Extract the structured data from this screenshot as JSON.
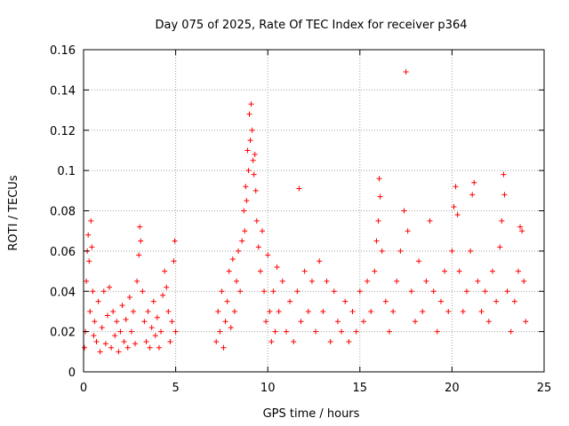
{
  "chart_data": {
    "type": "scatter",
    "title": "Day 075 of 2025, Rate Of TEC Index for receiver p364",
    "xlabel": "GPS time / hours",
    "ylabel": "ROTI / TECUs",
    "xlim": [
      0,
      25
    ],
    "ylim": [
      0,
      0.16
    ],
    "xticks": [
      0,
      5,
      10,
      15,
      20,
      25
    ],
    "xtick_labels": [
      "0",
      "5",
      "10",
      "15",
      "20",
      "25"
    ],
    "yticks": [
      0,
      0.02,
      0.04,
      0.06,
      0.08,
      0.1,
      0.12,
      0.14,
      0.16
    ],
    "ytick_labels": [
      "0",
      "0.02",
      "0.04",
      "0.06",
      "0.08",
      "0.1",
      "0.12",
      "0.14",
      "0.16"
    ],
    "grid": true,
    "marker": "plus",
    "color": "#ff0000",
    "series": [
      {
        "name": "ROTI",
        "points": [
          [
            0.05,
            0.012
          ],
          [
            0.1,
            0.02
          ],
          [
            0.15,
            0.045
          ],
          [
            0.2,
            0.06
          ],
          [
            0.25,
            0.068
          ],
          [
            0.3,
            0.055
          ],
          [
            0.35,
            0.03
          ],
          [
            0.4,
            0.075
          ],
          [
            0.45,
            0.062
          ],
          [
            0.5,
            0.04
          ],
          [
            0.55,
            0.018
          ],
          [
            0.6,
            0.025
          ],
          [
            0.7,
            0.015
          ],
          [
            0.8,
            0.035
          ],
          [
            0.9,
            0.01
          ],
          [
            1.0,
            0.022
          ],
          [
            1.1,
            0.04
          ],
          [
            1.2,
            0.014
          ],
          [
            1.3,
            0.028
          ],
          [
            1.4,
            0.042
          ],
          [
            1.5,
            0.012
          ],
          [
            1.6,
            0.03
          ],
          [
            1.7,
            0.018
          ],
          [
            1.8,
            0.025
          ],
          [
            1.9,
            0.01
          ],
          [
            2.0,
            0.02
          ],
          [
            2.1,
            0.033
          ],
          [
            2.2,
            0.015
          ],
          [
            2.3,
            0.026
          ],
          [
            2.4,
            0.012
          ],
          [
            2.5,
            0.037
          ],
          [
            2.6,
            0.02
          ],
          [
            2.7,
            0.03
          ],
          [
            2.8,
            0.014
          ],
          [
            2.9,
            0.045
          ],
          [
            3.0,
            0.058
          ],
          [
            3.05,
            0.072
          ],
          [
            3.1,
            0.065
          ],
          [
            3.2,
            0.04
          ],
          [
            3.3,
            0.025
          ],
          [
            3.4,
            0.015
          ],
          [
            3.5,
            0.03
          ],
          [
            3.6,
            0.012
          ],
          [
            3.7,
            0.022
          ],
          [
            3.8,
            0.035
          ],
          [
            3.9,
            0.018
          ],
          [
            4.0,
            0.027
          ],
          [
            4.1,
            0.012
          ],
          [
            4.2,
            0.02
          ],
          [
            4.3,
            0.038
          ],
          [
            4.4,
            0.05
          ],
          [
            4.5,
            0.042
          ],
          [
            4.6,
            0.03
          ],
          [
            4.7,
            0.015
          ],
          [
            4.8,
            0.025
          ],
          [
            4.9,
            0.055
          ],
          [
            4.95,
            0.065
          ],
          [
            5.0,
            0.02
          ],
          [
            7.2,
            0.015
          ],
          [
            7.3,
            0.03
          ],
          [
            7.4,
            0.02
          ],
          [
            7.5,
            0.04
          ],
          [
            7.6,
            0.012
          ],
          [
            7.7,
            0.025
          ],
          [
            7.8,
            0.035
          ],
          [
            7.9,
            0.05
          ],
          [
            8.0,
            0.022
          ],
          [
            8.1,
            0.056
          ],
          [
            8.2,
            0.03
          ],
          [
            8.3,
            0.045
          ],
          [
            8.4,
            0.06
          ],
          [
            8.5,
            0.04
          ],
          [
            8.6,
            0.065
          ],
          [
            8.7,
            0.08
          ],
          [
            8.75,
            0.07
          ],
          [
            8.8,
            0.092
          ],
          [
            8.85,
            0.085
          ],
          [
            8.9,
            0.11
          ],
          [
            8.95,
            0.1
          ],
          [
            9.0,
            0.128
          ],
          [
            9.05,
            0.115
          ],
          [
            9.1,
            0.133
          ],
          [
            9.15,
            0.12
          ],
          [
            9.2,
            0.105
          ],
          [
            9.25,
            0.098
          ],
          [
            9.3,
            0.108
          ],
          [
            9.35,
            0.09
          ],
          [
            9.4,
            0.075
          ],
          [
            9.5,
            0.062
          ],
          [
            9.6,
            0.05
          ],
          [
            9.7,
            0.07
          ],
          [
            9.8,
            0.04
          ],
          [
            9.9,
            0.025
          ],
          [
            10.0,
            0.058
          ],
          [
            10.1,
            0.03
          ],
          [
            10.2,
            0.015
          ],
          [
            10.3,
            0.04
          ],
          [
            10.4,
            0.02
          ],
          [
            10.5,
            0.052
          ],
          [
            10.6,
            0.03
          ],
          [
            10.8,
            0.045
          ],
          [
            11.0,
            0.02
          ],
          [
            11.2,
            0.035
          ],
          [
            11.4,
            0.015
          ],
          [
            11.6,
            0.04
          ],
          [
            11.7,
            0.091
          ],
          [
            11.8,
            0.025
          ],
          [
            12.0,
            0.05
          ],
          [
            12.2,
            0.03
          ],
          [
            12.4,
            0.045
          ],
          [
            12.6,
            0.02
          ],
          [
            12.8,
            0.055
          ],
          [
            13.0,
            0.03
          ],
          [
            13.2,
            0.045
          ],
          [
            13.4,
            0.015
          ],
          [
            13.6,
            0.04
          ],
          [
            13.8,
            0.025
          ],
          [
            14.0,
            0.02
          ],
          [
            14.2,
            0.035
          ],
          [
            14.4,
            0.015
          ],
          [
            14.6,
            0.03
          ],
          [
            14.8,
            0.02
          ],
          [
            15.0,
            0.04
          ],
          [
            15.2,
            0.025
          ],
          [
            15.4,
            0.045
          ],
          [
            15.6,
            0.03
          ],
          [
            15.8,
            0.05
          ],
          [
            15.9,
            0.065
          ],
          [
            16.0,
            0.075
          ],
          [
            16.05,
            0.096
          ],
          [
            16.1,
            0.087
          ],
          [
            16.2,
            0.06
          ],
          [
            16.4,
            0.035
          ],
          [
            16.6,
            0.02
          ],
          [
            16.8,
            0.03
          ],
          [
            17.0,
            0.045
          ],
          [
            17.2,
            0.06
          ],
          [
            17.4,
            0.08
          ],
          [
            17.5,
            0.149
          ],
          [
            17.6,
            0.07
          ],
          [
            17.8,
            0.04
          ],
          [
            18.0,
            0.025
          ],
          [
            18.2,
            0.055
          ],
          [
            18.4,
            0.03
          ],
          [
            18.6,
            0.045
          ],
          [
            18.8,
            0.075
          ],
          [
            19.0,
            0.04
          ],
          [
            19.2,
            0.02
          ],
          [
            19.4,
            0.035
          ],
          [
            19.6,
            0.05
          ],
          [
            19.8,
            0.03
          ],
          [
            20.0,
            0.06
          ],
          [
            20.1,
            0.082
          ],
          [
            20.2,
            0.092
          ],
          [
            20.3,
            0.078
          ],
          [
            20.4,
            0.05
          ],
          [
            20.6,
            0.03
          ],
          [
            20.8,
            0.04
          ],
          [
            21.0,
            0.06
          ],
          [
            21.1,
            0.088
          ],
          [
            21.2,
            0.094
          ],
          [
            21.4,
            0.045
          ],
          [
            21.6,
            0.03
          ],
          [
            21.8,
            0.04
          ],
          [
            22.0,
            0.025
          ],
          [
            22.2,
            0.05
          ],
          [
            22.4,
            0.035
          ],
          [
            22.6,
            0.062
          ],
          [
            22.7,
            0.075
          ],
          [
            22.8,
            0.098
          ],
          [
            22.85,
            0.088
          ],
          [
            23.0,
            0.04
          ],
          [
            23.2,
            0.02
          ],
          [
            23.4,
            0.035
          ],
          [
            23.6,
            0.05
          ],
          [
            23.7,
            0.072
          ],
          [
            23.8,
            0.07
          ],
          [
            23.9,
            0.045
          ],
          [
            24.0,
            0.025
          ]
        ]
      }
    ]
  }
}
